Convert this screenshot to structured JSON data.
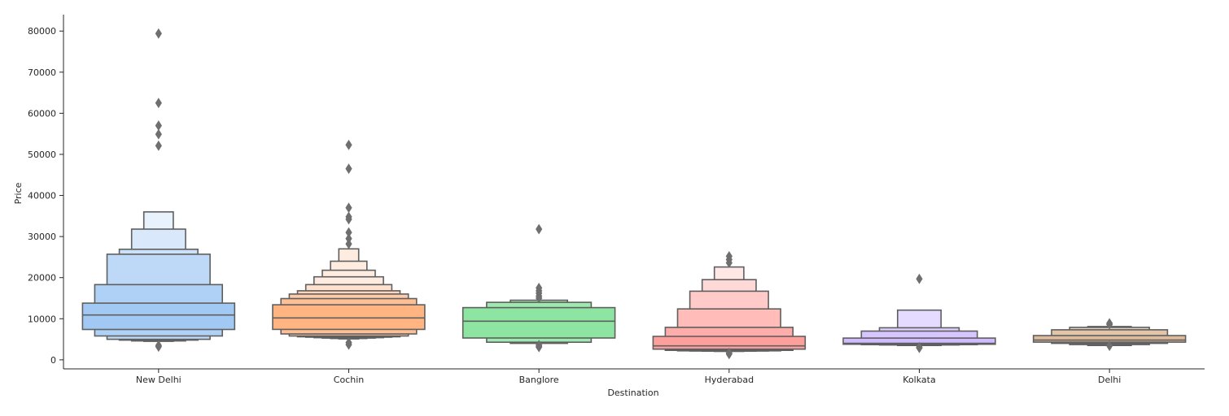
{
  "chart_data": {
    "type": "boxen",
    "xlabel": "Destination",
    "ylabel": "Price",
    "ylim": [
      -2200,
      84000
    ],
    "yticks": [
      0,
      10000,
      20000,
      30000,
      40000,
      50000,
      60000,
      70000,
      80000
    ],
    "grid": false,
    "categories": [
      "New Delhi",
      "Cochin",
      "Banglore",
      "Hyderabad",
      "Kolkata",
      "Delhi"
    ],
    "series": [
      {
        "category": "New Delhi",
        "color": "#a1c9f4",
        "median": 10900,
        "boxes": [
          [
            7400,
            13800
          ],
          [
            5800,
            18300
          ],
          [
            5000,
            25700
          ],
          [
            4800,
            26900
          ],
          [
            4600,
            31800
          ],
          [
            4500,
            36000
          ]
        ],
        "outliers": [
          79400,
          62500,
          57000,
          54900,
          52100,
          3500,
          3200
        ]
      },
      {
        "category": "Cochin",
        "color": "#ffb482",
        "median": 10200,
        "boxes": [
          [
            7400,
            13400
          ],
          [
            6300,
            14900
          ],
          [
            5800,
            16000
          ],
          [
            5600,
            16800
          ],
          [
            5500,
            18300
          ],
          [
            5400,
            20200
          ],
          [
            5300,
            21800
          ],
          [
            5200,
            24000
          ],
          [
            5100,
            27000
          ]
        ],
        "outliers": [
          52300,
          46500,
          37000,
          34800,
          34200,
          31000,
          29500,
          28200,
          4200,
          3700
        ]
      },
      {
        "category": "Banglore",
        "color": "#8de5a1",
        "median": 9400,
        "boxes": [
          [
            5300,
            12700
          ],
          [
            4300,
            14000
          ],
          [
            4000,
            14500
          ]
        ],
        "outliers": [
          31800,
          17500,
          16800,
          16200,
          15500,
          15000,
          3600,
          3300,
          3100
        ]
      },
      {
        "category": "Hyderabad",
        "color": "#ff9f9b",
        "median": 3400,
        "boxes": [
          [
            2600,
            5700
          ],
          [
            2300,
            7900
          ],
          [
            2200,
            12400
          ],
          [
            2150,
            16700
          ],
          [
            2100,
            19500
          ],
          [
            2050,
            22600
          ]
        ],
        "outliers": [
          25200,
          24400,
          23600,
          1700,
          1400
        ]
      },
      {
        "category": "Kolkata",
        "color": "#d0bbff",
        "median": 4000,
        "boxes": [
          [
            3800,
            5300
          ],
          [
            3700,
            7000
          ],
          [
            3600,
            7800
          ],
          [
            3500,
            12100
          ]
        ],
        "outliers": [
          19700,
          3100,
          2900
        ]
      },
      {
        "category": "Delhi",
        "color": "#debb9b",
        "median": 4800,
        "boxes": [
          [
            4300,
            5900
          ],
          [
            4000,
            7300
          ],
          [
            3700,
            7900
          ],
          [
            3500,
            8100
          ]
        ],
        "outliers": [
          8900,
          8600,
          3400
        ]
      }
    ]
  }
}
